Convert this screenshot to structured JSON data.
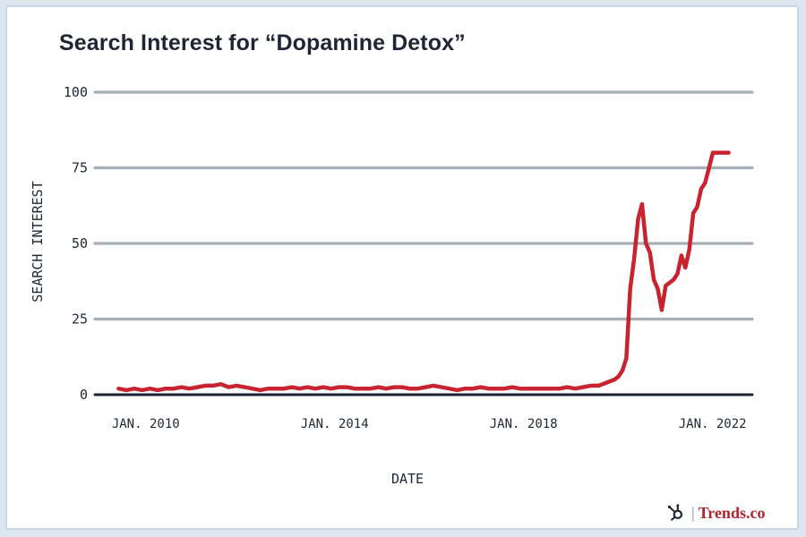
{
  "chart_data": {
    "type": "line",
    "title": "Search Interest for “Dopamine Detox”",
    "xlabel": "DATE",
    "ylabel": "SEARCH INTEREST",
    "ylim": [
      0,
      100
    ],
    "yticks": [
      0,
      25,
      50,
      75,
      100
    ],
    "xlim": [
      "2009-01",
      "2022-12"
    ],
    "xticks": [
      {
        "x": "2010-01",
        "label": "JAN. 2010"
      },
      {
        "x": "2014-01",
        "label": "JAN. 2014"
      },
      {
        "x": "2018-01",
        "label": "JAN. 2018"
      },
      {
        "x": "2022-01",
        "label": "JAN. 2022"
      }
    ],
    "grid": true,
    "line_color": "#c8232f",
    "series": [
      {
        "x": [
          "2009-07",
          "2009-09",
          "2009-11",
          "2010-01",
          "2010-03",
          "2010-05",
          "2010-07",
          "2010-09",
          "2010-11",
          "2011-01",
          "2011-03",
          "2011-05",
          "2011-07",
          "2011-09",
          "2011-11",
          "2012-01",
          "2012-03",
          "2012-05",
          "2012-07",
          "2012-09",
          "2012-11",
          "2013-01",
          "2013-03",
          "2013-05",
          "2013-07",
          "2013-09",
          "2013-11",
          "2014-01",
          "2014-03",
          "2014-05",
          "2014-07",
          "2014-09",
          "2014-11",
          "2015-01",
          "2015-03",
          "2015-05",
          "2015-07",
          "2015-09",
          "2015-11",
          "2016-01",
          "2016-03",
          "2016-05",
          "2016-07",
          "2016-09",
          "2016-11",
          "2017-01",
          "2017-03",
          "2017-05",
          "2017-07",
          "2017-09",
          "2017-11",
          "2018-01",
          "2018-03",
          "2018-05",
          "2018-07",
          "2018-09",
          "2018-11",
          "2019-01",
          "2019-03",
          "2019-05",
          "2019-07",
          "2019-09",
          "2019-10",
          "2019-11",
          "2019-12",
          "2020-01",
          "2020-02",
          "2020-03",
          "2020-04",
          "2020-05",
          "2020-06",
          "2020-07",
          "2020-08",
          "2020-09",
          "2020-10",
          "2020-11",
          "2020-12",
          "2021-01",
          "2021-02",
          "2021-03",
          "2021-04",
          "2021-05",
          "2021-06",
          "2021-07",
          "2021-08",
          "2021-09",
          "2021-10",
          "2021-11",
          "2021-12",
          "2022-01",
          "2022-02",
          "2022-03",
          "2022-04",
          "2022-05",
          "2022-06"
        ],
        "values": [
          2,
          1.5,
          2,
          1.5,
          2,
          1.5,
          2,
          2,
          2.5,
          2,
          2.5,
          3,
          3,
          3.5,
          2.5,
          3,
          2.5,
          2,
          1.5,
          2,
          2,
          2,
          2.5,
          2,
          2.5,
          2,
          2.5,
          2,
          2.5,
          2.5,
          2,
          2,
          2,
          2.5,
          2,
          2.5,
          2.5,
          2,
          2,
          2.5,
          3,
          2.5,
          2,
          1.5,
          2,
          2,
          2.5,
          2,
          2,
          2,
          2.5,
          2,
          2,
          2,
          2,
          2,
          2,
          2.5,
          2,
          2.5,
          3,
          3,
          3.5,
          4,
          4.5,
          5,
          6,
          8,
          12,
          35,
          45,
          58,
          63,
          50,
          47,
          38,
          35,
          28,
          36,
          37,
          38,
          40,
          46,
          42,
          48,
          60,
          62,
          68,
          70,
          75,
          80,
          80,
          80,
          80,
          80
        ]
      }
    ]
  },
  "brand": {
    "icon": "hubspot-sprocket-icon",
    "separator": "|",
    "name": "Trends.co"
  }
}
